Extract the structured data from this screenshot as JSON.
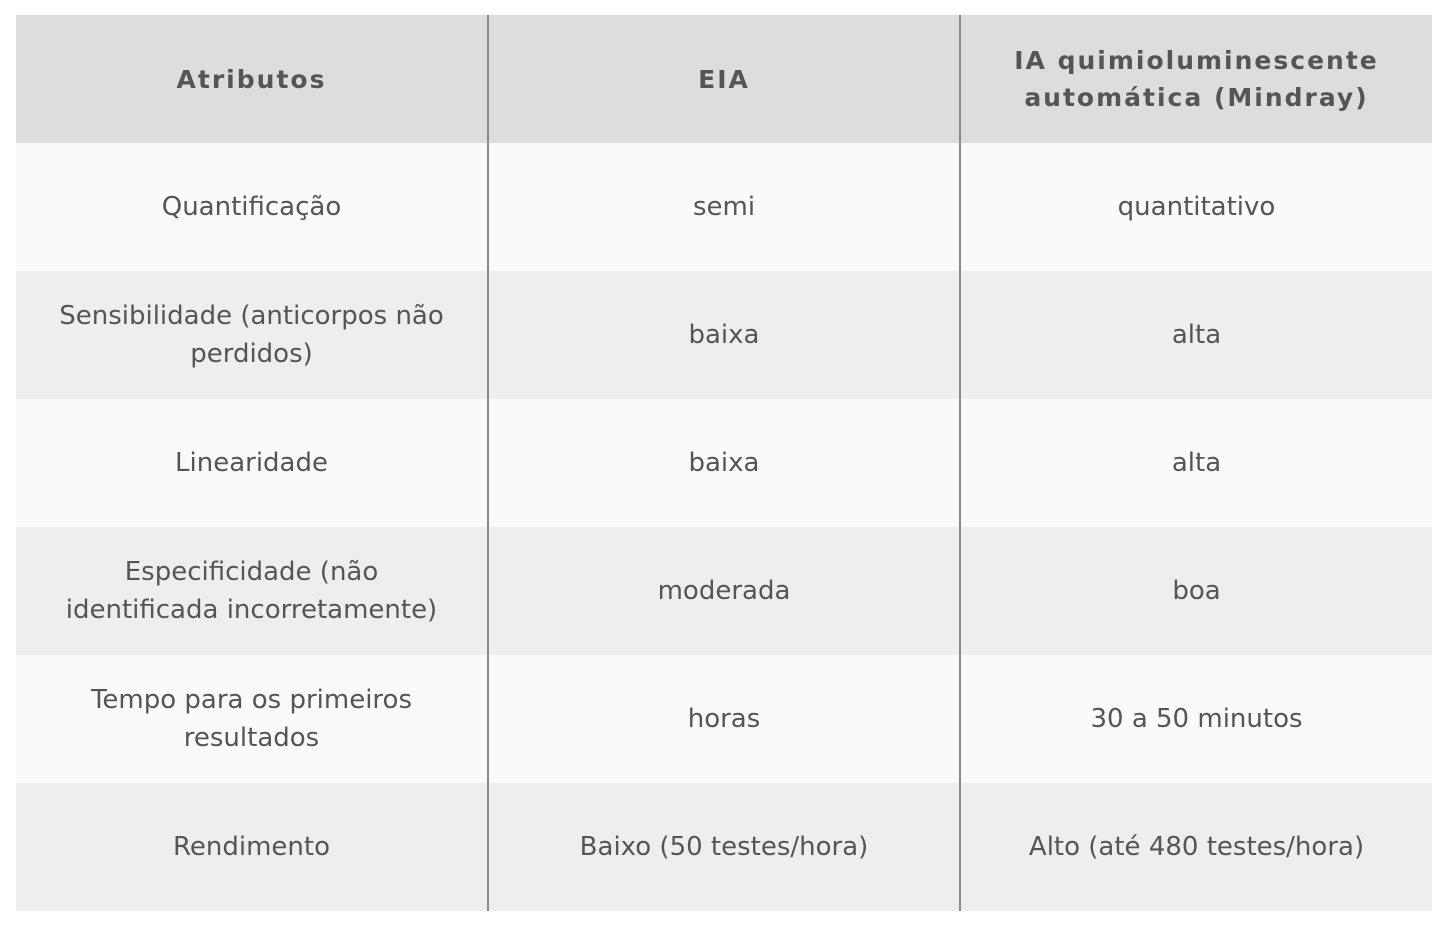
{
  "headers": [
    "Atributos",
    "EIA",
    "IA quimioluminescente automática (Mindray)"
  ],
  "rows": [
    [
      "Quantificação",
      "semi",
      "quantitativo"
    ],
    [
      "Sensibilidade (anticorpos não perdidos)",
      "baixa",
      "alta"
    ],
    [
      "Linearidade",
      "baixa",
      "alta"
    ],
    [
      "Especificidade (não identificada incorretamente)",
      "moderada",
      "boa"
    ],
    [
      "Tempo para os primeiros resultados",
      "horas",
      "30 a 50 minutos"
    ],
    [
      "Rendimento",
      "Baixo (50 testes/hora)",
      "Alto (até 480 testes/hora)"
    ]
  ],
  "colors": {
    "header_bg": "#dddddd",
    "row_light": "#fafafa",
    "row_dark": "#eeeeee",
    "text": "#555555",
    "divider": "#8a8a8a"
  }
}
